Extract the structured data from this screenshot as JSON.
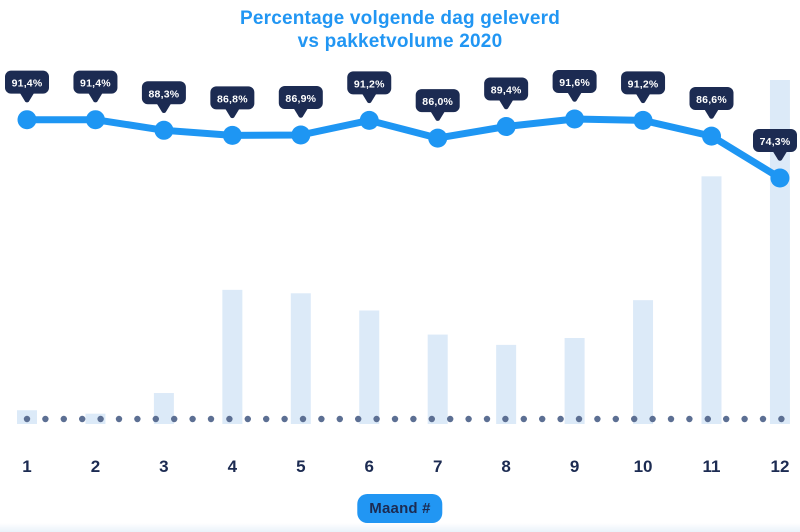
{
  "title": {
    "line1": "Percentage volgende dag geleverd",
    "line2": "vs pakketvolume 2020"
  },
  "x_axis": {
    "label": "Maand #",
    "categories": [
      "1",
      "2",
      "3",
      "4",
      "5",
      "6",
      "7",
      "8",
      "9",
      "10",
      "11",
      "12"
    ]
  },
  "colors": {
    "accent_blue": "#1E96F3",
    "badge_blue": "#2196F3",
    "navy": "#1C2B52",
    "bar_fill": "#DCEAF8",
    "baseline_dot": "#5C6F93",
    "tooltip_text": "#FFFFFF",
    "background": "#FFFFFF"
  },
  "chart_data": {
    "type": "line",
    "title": "Percentage volgende dag geleverd vs pakketvolume 2020",
    "xlabel": "Maand #",
    "categories": [
      "1",
      "2",
      "3",
      "4",
      "5",
      "6",
      "7",
      "8",
      "9",
      "10",
      "11",
      "12"
    ],
    "grid": "off",
    "legend": "none",
    "series": [
      {
        "name": "Percentage volgende dag geleverd",
        "type": "line",
        "unit": "%",
        "values": [
          91.4,
          91.4,
          88.3,
          86.8,
          86.9,
          91.2,
          86.0,
          89.4,
          91.6,
          91.2,
          86.6,
          74.3
        ],
        "labels": [
          "91,4%",
          "91,4%",
          "88,3%",
          "86,8%",
          "86,9%",
          "91,2%",
          "86,0%",
          "89,4%",
          "91,6%",
          "91,2%",
          "86,6%",
          "74,3%"
        ]
      },
      {
        "name": "Pakketvolume 2020",
        "type": "bar",
        "unit": "relative volume, unlabeled axis (max month = 100)",
        "values": [
          4,
          3,
          9,
          39,
          38,
          33,
          26,
          23,
          25,
          36,
          72,
          100
        ]
      }
    ],
    "y_range_line_pct": [
      74.3,
      91.6
    ]
  }
}
